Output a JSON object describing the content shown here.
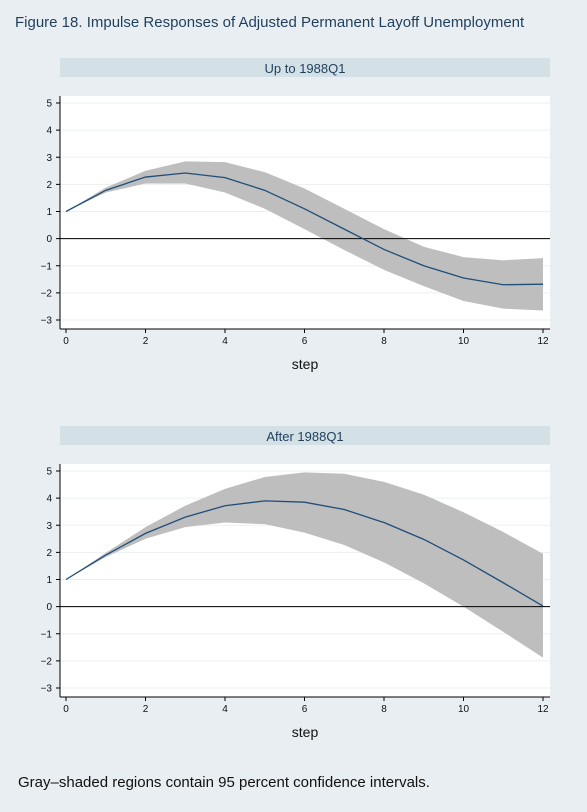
{
  "figure_title": "Figure 18.  Impulse Responses of Adjusted Permanent Layoff Unemployment",
  "footnote": "Gray–shaded regions contain 95 percent confidence intervals.",
  "colors": {
    "background": "#e8eef2",
    "strip": "#d3e0e6",
    "plot_bg": "#ffffff",
    "band": "#bebebe",
    "line": "#1f4e79",
    "zero_line": "#000000",
    "grid": "#eaf0f2"
  },
  "chart_data": [
    {
      "type": "line",
      "title": "Up to 1988Q1",
      "xlabel": "step",
      "ylabel": "",
      "xlim": [
        0,
        12
      ],
      "ylim": [
        -3,
        5
      ],
      "xticks": [
        0,
        2,
        4,
        6,
        8,
        10,
        12
      ],
      "yticks": [
        5,
        4,
        3,
        2,
        1,
        0,
        -1,
        -2,
        -3
      ],
      "ytick_labels": [
        "5",
        "4",
        "3",
        "2",
        "1",
        "0",
        "−1",
        "−2",
        "−3"
      ],
      "x": [
        0,
        1,
        2,
        3,
        4,
        5,
        6,
        7,
        8,
        9,
        10,
        11,
        12
      ],
      "series": [
        {
          "values": [
            1.0,
            1.78,
            2.27,
            2.42,
            2.25,
            1.78,
            1.1,
            0.35,
            -0.4,
            -1.0,
            -1.45,
            -1.7,
            -1.68
          ],
          "lower": [
            1.0,
            1.7,
            2.03,
            2.03,
            1.7,
            1.1,
            0.35,
            -0.42,
            -1.15,
            -1.75,
            -2.3,
            -2.58,
            -2.65
          ],
          "upper": [
            1.0,
            1.88,
            2.5,
            2.85,
            2.82,
            2.45,
            1.85,
            1.1,
            0.35,
            -0.3,
            -0.68,
            -0.8,
            -0.72
          ]
        }
      ],
      "zero_line": 0,
      "grid": true
    },
    {
      "type": "line",
      "title": "After 1988Q1",
      "xlabel": "step",
      "ylabel": "",
      "xlim": [
        0,
        12
      ],
      "ylim": [
        -3,
        5
      ],
      "xticks": [
        0,
        2,
        4,
        6,
        8,
        10,
        12
      ],
      "yticks": [
        5,
        4,
        3,
        2,
        1,
        0,
        -1,
        -2,
        -3
      ],
      "ytick_labels": [
        "5",
        "4",
        "3",
        "2",
        "1",
        "0",
        "−1",
        "−2",
        "−3"
      ],
      "x": [
        0,
        1,
        2,
        3,
        4,
        5,
        6,
        7,
        8,
        9,
        10,
        11,
        12
      ],
      "series": [
        {
          "values": [
            1.0,
            1.9,
            2.7,
            3.3,
            3.72,
            3.9,
            3.85,
            3.58,
            3.1,
            2.48,
            1.72,
            0.88,
            0.02
          ],
          "lower": [
            1.0,
            1.83,
            2.5,
            2.93,
            3.1,
            3.04,
            2.73,
            2.27,
            1.63,
            0.86,
            0.0,
            -0.93,
            -1.88
          ],
          "upper": [
            1.0,
            1.98,
            2.93,
            3.72,
            4.34,
            4.78,
            4.95,
            4.9,
            4.6,
            4.13,
            3.48,
            2.75,
            1.95
          ]
        }
      ],
      "zero_line": 0,
      "grid": true
    }
  ]
}
